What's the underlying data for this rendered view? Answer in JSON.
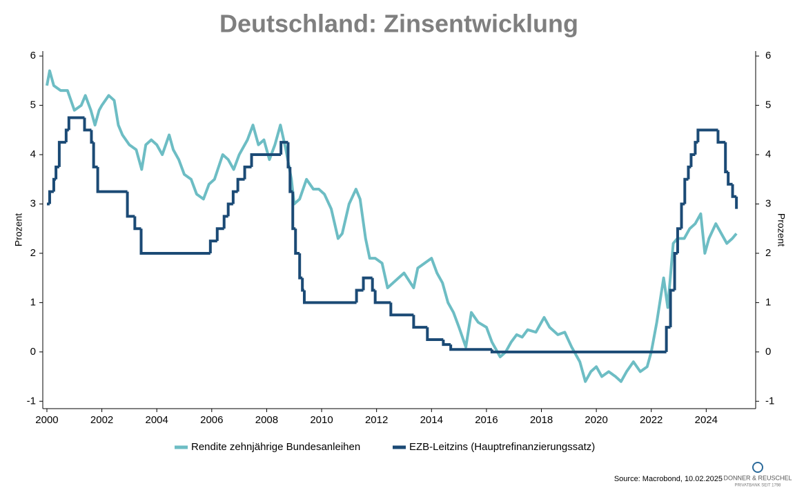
{
  "chart_data": {
    "type": "line",
    "title": "Deutschland: Zinsentwicklung",
    "ylabel": "Prozent",
    "y2label": "Prozent",
    "source": "Source: Macrobond, 10.02.2025",
    "logo": "DONNER & REUSCHEL",
    "logo_tagline": "PRIVATBANK SEIT 1798",
    "xlim": [
      1999.85,
      2025.8
    ],
    "xticks": [
      2000,
      2002,
      2004,
      2006,
      2008,
      2010,
      2012,
      2014,
      2016,
      2018,
      2020,
      2022,
      2024
    ],
    "ylim": [
      -1.15,
      6.1
    ],
    "yticks": [
      -1,
      0,
      1,
      2,
      3,
      4,
      5,
      6
    ],
    "y2lim": [
      -1.15,
      6.1
    ],
    "y2ticks": [
      -1,
      0,
      1,
      2,
      3,
      4,
      5,
      6
    ],
    "legend": "bottom",
    "series": [
      {
        "name": "Rendite zehnjährige Bundesanleihen",
        "color": "#6dbdc4",
        "axis": "y",
        "x": [
          2000.0,
          2000.1,
          2000.25,
          2000.5,
          2000.75,
          2001.0,
          2001.25,
          2001.4,
          2001.6,
          2001.75,
          2001.9,
          2002.0,
          2002.25,
          2002.45,
          2002.6,
          2002.75,
          2003.0,
          2003.25,
          2003.45,
          2003.6,
          2003.8,
          2004.0,
          2004.2,
          2004.45,
          2004.6,
          2004.8,
          2005.0,
          2005.25,
          2005.45,
          2005.7,
          2005.9,
          2006.1,
          2006.4,
          2006.6,
          2006.8,
          2007.0,
          2007.3,
          2007.5,
          2007.7,
          2007.9,
          2008.1,
          2008.3,
          2008.5,
          2008.7,
          2008.9,
          2009.0,
          2009.2,
          2009.45,
          2009.7,
          2009.9,
          2010.1,
          2010.35,
          2010.6,
          2010.75,
          2011.0,
          2011.25,
          2011.4,
          2011.6,
          2011.75,
          2011.95,
          2012.2,
          2012.4,
          2012.6,
          2012.8,
          2013.0,
          2013.35,
          2013.5,
          2013.75,
          2014.0,
          2014.2,
          2014.4,
          2014.6,
          2014.8,
          2015.0,
          2015.25,
          2015.45,
          2015.7,
          2016.0,
          2016.2,
          2016.5,
          2016.7,
          2016.9,
          2017.1,
          2017.3,
          2017.5,
          2017.8,
          2018.1,
          2018.3,
          2018.6,
          2018.85,
          2019.1,
          2019.4,
          2019.6,
          2019.8,
          2020.0,
          2020.2,
          2020.45,
          2020.7,
          2020.9,
          2021.1,
          2021.35,
          2021.6,
          2021.85,
          2022.0,
          2022.2,
          2022.45,
          2022.6,
          2022.8,
          2022.95,
          2023.2,
          2023.4,
          2023.6,
          2023.8,
          2023.95,
          2024.1,
          2024.35,
          2024.55,
          2024.75,
          2024.95,
          2025.1
        ],
        "values": [
          5.4,
          5.7,
          5.4,
          5.3,
          5.3,
          4.9,
          5.0,
          5.2,
          4.9,
          4.6,
          4.9,
          5.0,
          5.2,
          5.1,
          4.6,
          4.4,
          4.2,
          4.1,
          3.7,
          4.2,
          4.3,
          4.2,
          4.0,
          4.4,
          4.1,
          3.9,
          3.6,
          3.5,
          3.2,
          3.1,
          3.4,
          3.5,
          4.0,
          3.9,
          3.7,
          4.0,
          4.3,
          4.6,
          4.2,
          4.3,
          3.9,
          4.2,
          4.6,
          4.1,
          3.5,
          3.0,
          3.1,
          3.5,
          3.3,
          3.3,
          3.2,
          2.9,
          2.3,
          2.4,
          3.0,
          3.3,
          3.1,
          2.3,
          1.9,
          1.9,
          1.8,
          1.3,
          1.4,
          1.5,
          1.6,
          1.3,
          1.7,
          1.8,
          1.9,
          1.6,
          1.4,
          1.0,
          0.8,
          0.5,
          0.1,
          0.8,
          0.6,
          0.5,
          0.2,
          -0.1,
          0.0,
          0.2,
          0.35,
          0.3,
          0.45,
          0.4,
          0.7,
          0.5,
          0.35,
          0.4,
          0.1,
          -0.2,
          -0.6,
          -0.4,
          -0.3,
          -0.5,
          -0.4,
          -0.5,
          -0.6,
          -0.4,
          -0.2,
          -0.4,
          -0.3,
          0.0,
          0.6,
          1.5,
          0.9,
          2.2,
          2.3,
          2.3,
          2.5,
          2.6,
          2.8,
          2.0,
          2.3,
          2.6,
          2.4,
          2.2,
          2.3,
          2.4
        ]
      },
      {
        "name": "EZB-Leitzins (Hauptrefinanzierungssatz)",
        "color": "#1b4a75",
        "axis": "y2",
        "step": "post",
        "x": [
          2000.0,
          2000.1,
          2000.25,
          2000.33,
          2000.45,
          2000.7,
          2000.8,
          2001.37,
          2001.62,
          2001.7,
          2001.85,
          2002.93,
          2003.2,
          2003.43,
          2005.95,
          2006.2,
          2006.45,
          2006.6,
          2006.78,
          2006.95,
          2007.2,
          2007.45,
          2008.52,
          2008.78,
          2008.85,
          2008.95,
          2009.05,
          2009.2,
          2009.3,
          2009.37,
          2011.27,
          2011.52,
          2011.85,
          2011.95,
          2012.52,
          2013.35,
          2013.85,
          2014.43,
          2014.7,
          2016.2,
          2022.55,
          2022.7,
          2022.85,
          2022.96,
          2023.1,
          2023.22,
          2023.35,
          2023.45,
          2023.6,
          2023.7,
          2024.43,
          2024.7,
          2024.8,
          2024.96,
          2025.1
        ],
        "values": [
          3.0,
          3.25,
          3.5,
          3.75,
          4.25,
          4.5,
          4.75,
          4.5,
          4.25,
          3.75,
          3.25,
          2.75,
          2.5,
          2.0,
          2.25,
          2.5,
          2.75,
          3.0,
          3.25,
          3.5,
          3.75,
          4.0,
          4.25,
          3.75,
          3.25,
          2.5,
          2.0,
          1.5,
          1.25,
          1.0,
          1.25,
          1.5,
          1.25,
          1.0,
          0.75,
          0.5,
          0.25,
          0.15,
          0.05,
          0.0,
          0.5,
          1.25,
          2.0,
          2.5,
          3.0,
          3.5,
          3.75,
          4.0,
          4.25,
          4.5,
          4.25,
          3.65,
          3.4,
          3.15,
          2.9
        ]
      }
    ]
  }
}
